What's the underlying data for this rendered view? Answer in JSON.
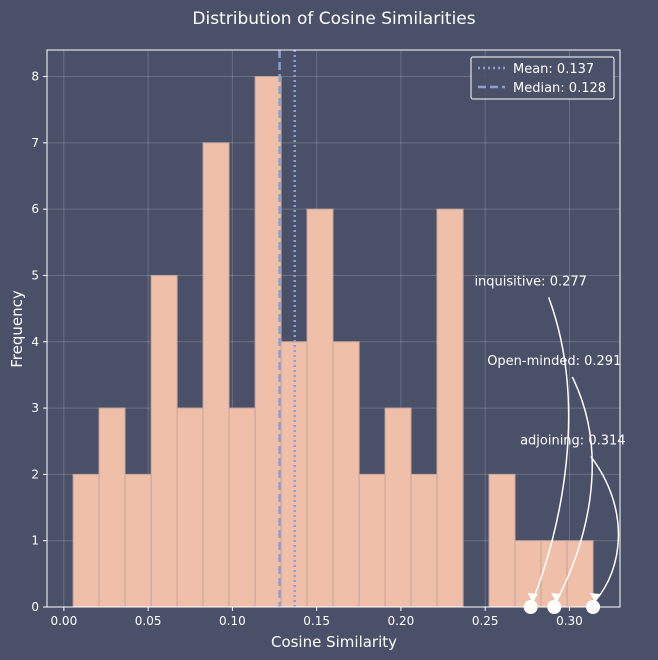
{
  "chart_data": {
    "type": "histogram",
    "title": "Distribution of Cosine Similarities",
    "xlabel": "Cosine Similarity",
    "ylabel": "Frequency",
    "xlim": [
      -0.01,
      0.33
    ],
    "ylim": [
      0,
      8.4
    ],
    "xticks": [
      0.0,
      0.05,
      0.1,
      0.15,
      0.2,
      0.25,
      0.3
    ],
    "xtick_labels": [
      "0.00",
      "0.05",
      "0.10",
      "0.15",
      "0.20",
      "0.25",
      "0.30"
    ],
    "yticks": [
      0,
      1,
      2,
      3,
      4,
      5,
      6,
      7,
      8
    ],
    "ytick_labels": [
      "0",
      "1",
      "2",
      "3",
      "4",
      "5",
      "6",
      "7",
      "8"
    ],
    "grid": true,
    "bin_edges": [
      0.0055,
      0.0209,
      0.0363,
      0.0518,
      0.0672,
      0.0826,
      0.098,
      0.1135,
      0.1289,
      0.1443,
      0.1597,
      0.1752,
      0.1906,
      0.206,
      0.2214,
      0.2369,
      0.2523,
      0.2677,
      0.2831,
      0.2986,
      0.314
    ],
    "counts": [
      2,
      3,
      2,
      5,
      3,
      7,
      3,
      8,
      4,
      6,
      4,
      2,
      3,
      2,
      6,
      0,
      2,
      1,
      1,
      1
    ],
    "bar_color": "#f0bfaa",
    "bar_edge_color": "#c4a79e",
    "mean": {
      "label": "Mean: 0.137",
      "value": 0.137,
      "style": "dotted",
      "color": "#8c9fd3"
    },
    "median": {
      "label": "Median: 0.128",
      "value": 0.128,
      "style": "dashed",
      "color": "#8c9fd3"
    },
    "legend_position": "top-right",
    "annotations": [
      {
        "text": "inquisitive: 0.277",
        "value": 0.277,
        "text_x": 0.277,
        "text_y": 4.85
      },
      {
        "text": "Open-minded: 0.291",
        "value": 0.291,
        "text_x": 0.291,
        "text_y": 3.65
      },
      {
        "text": "adjoining: 0.314",
        "value": 0.314,
        "text_x": 0.302,
        "text_y": 2.45
      }
    ]
  }
}
